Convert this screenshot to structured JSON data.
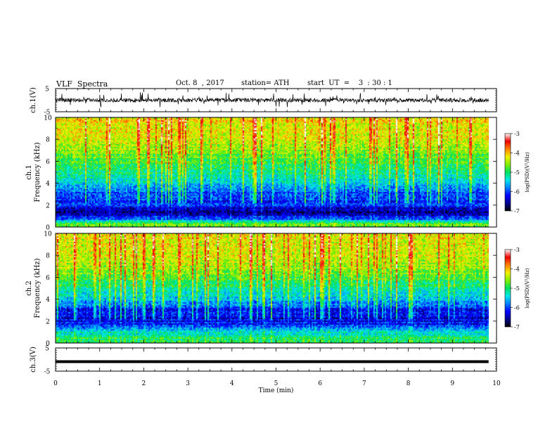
{
  "header": {
    "title": "VLF  Spectra",
    "date": "Oct. 8  , 2017",
    "station": "station= ATH",
    "start": "start  UT  =    3  : 30 : 1"
  },
  "chart_data": [
    {
      "type": "line",
      "panel": "ch1-waveform",
      "ylabel": "ch.1(V)",
      "ylim": [
        -5,
        5
      ],
      "y_ticks": [
        "5",
        "-5"
      ],
      "xlim": [
        0,
        10
      ],
      "x_data_end": 9.82,
      "series": [
        {
          "values": {
            "baseline": 0,
            "typical_range": [
              -1.5,
              1.5
            ],
            "spike_range": [
              -3.5,
              3.5
            ]
          }
        }
      ]
    },
    {
      "type": "heatmap",
      "panel": "ch1-spectrogram",
      "ylabel_line1": "ch.1",
      "ylabel_line2": "Frequency  (kHz)",
      "ylim": [
        0,
        10
      ],
      "y_ticks": [
        "10",
        "8",
        "6",
        "4",
        "2",
        "0"
      ],
      "xlim": [
        0,
        10
      ],
      "x_data_end": 9.82,
      "colorbar": {
        "label": "log(PSD)(V²/Hz)",
        "range": [
          -7,
          -3
        ],
        "ticks": [
          "-3",
          "-4",
          "-5",
          "-6",
          "-7"
        ]
      },
      "profile_kHz_logPSD": [
        [
          0,
          -4.6
        ],
        [
          0.3,
          -4.8
        ],
        [
          0.7,
          -5.8
        ],
        [
          1.0,
          -6.3
        ],
        [
          1.5,
          -6.6
        ],
        [
          2.0,
          -6.0
        ],
        [
          2.5,
          -5.9
        ],
        [
          3.0,
          -5.8
        ],
        [
          3.5,
          -5.6
        ],
        [
          4.0,
          -5.2
        ],
        [
          5.0,
          -5.0
        ],
        [
          6.0,
          -4.7
        ],
        [
          7.0,
          -4.4
        ],
        [
          8.0,
          -4.2
        ],
        [
          9.0,
          -4.1
        ],
        [
          10.0,
          -4.0
        ]
      ]
    },
    {
      "type": "heatmap",
      "panel": "ch2-spectrogram",
      "ylabel_line1": "ch.2",
      "ylabel_line2": "Frequency  (kHz)",
      "ylim": [
        0,
        10
      ],
      "y_ticks": [
        "10",
        "8",
        "6",
        "4",
        "2",
        "0"
      ],
      "xlim": [
        0,
        10
      ],
      "x_data_end": 9.82,
      "colorbar": {
        "label": "log(PSD)(V²/Hz)",
        "range": [
          -7,
          -3
        ],
        "ticks": [
          "-3",
          "-4",
          "-5",
          "-6",
          "-7"
        ]
      },
      "profile_kHz_logPSD": [
        [
          0,
          -4.9
        ],
        [
          0.4,
          -5.0
        ],
        [
          1.0,
          -5.3
        ],
        [
          1.5,
          -6.0
        ],
        [
          2.0,
          -6.2
        ],
        [
          2.5,
          -6.1
        ],
        [
          3.0,
          -6.0
        ],
        [
          3.5,
          -5.7
        ],
        [
          4.0,
          -5.3
        ],
        [
          5.0,
          -5.0
        ],
        [
          6.0,
          -4.6
        ],
        [
          7.0,
          -4.3
        ],
        [
          8.0,
          -4.2
        ],
        [
          9.0,
          -4.1
        ],
        [
          10.0,
          -4.0
        ]
      ]
    },
    {
      "type": "line",
      "panel": "ch3-waveform",
      "ylabel": "ch.3(V)",
      "ylim": [
        -5,
        5
      ],
      "y_ticks": [
        "5",
        "-5"
      ],
      "xlim": [
        0,
        10
      ],
      "x_data_end": 9.82,
      "xlabel": "Time  (min)",
      "x_ticks": [
        "0",
        "1",
        "2",
        "3",
        "4",
        "5",
        "6",
        "7",
        "8",
        "9",
        "10"
      ],
      "series": [
        {
          "values": {
            "baseline": -0.9
          }
        }
      ]
    }
  ],
  "colors": {
    "axis": "#000000",
    "colormap_stops": [
      [
        -7.0,
        "#000000"
      ],
      [
        -6.6,
        "#000090"
      ],
      [
        -6.2,
        "#0000ff"
      ],
      [
        -5.8,
        "#0080ff"
      ],
      [
        -5.4,
        "#00e8e8"
      ],
      [
        -5.0,
        "#00e060"
      ],
      [
        -4.6,
        "#80ee00"
      ],
      [
        -4.2,
        "#f0f000"
      ],
      [
        -3.8,
        "#ff8000"
      ],
      [
        -3.4,
        "#ee0000"
      ],
      [
        -3.0,
        "#ffffff"
      ]
    ]
  }
}
